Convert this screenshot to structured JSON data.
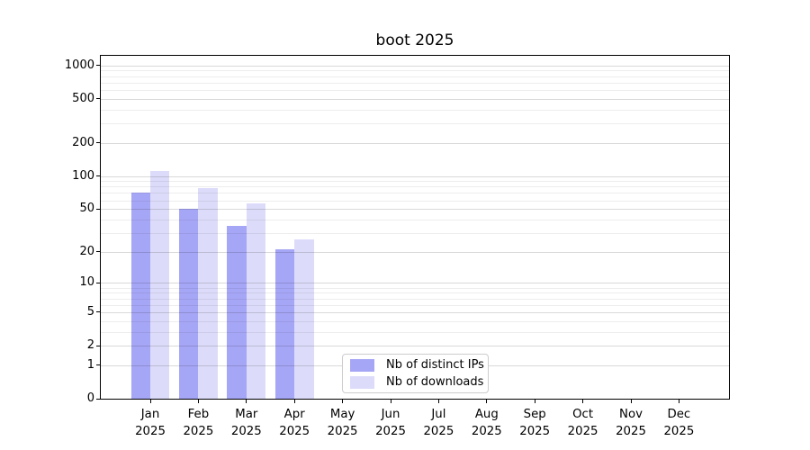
{
  "chart_data": {
    "type": "bar",
    "title": "boot 2025",
    "categories": [
      "Jan",
      "Feb",
      "Mar",
      "Apr",
      "May",
      "Jun",
      "Jul",
      "Aug",
      "Sep",
      "Oct",
      "Nov",
      "Dec"
    ],
    "category_year": "2025",
    "series": [
      {
        "name": "Nb of distinct IPs",
        "color": "#a6a6f6",
        "values": [
          70,
          50,
          35,
          21,
          null,
          null,
          null,
          null,
          null,
          null,
          null,
          null
        ]
      },
      {
        "name": "Nb of downloads",
        "color": "#dcdcfa",
        "values": [
          111,
          78,
          56,
          26,
          null,
          null,
          null,
          null,
          null,
          null,
          null,
          null
        ]
      }
    ],
    "y_scale": "log1p",
    "ylim": [
      0,
      1220
    ],
    "y_ticks": [
      0,
      1,
      2,
      5,
      10,
      20,
      50,
      100,
      200,
      500,
      1000
    ],
    "y_minor_ticks": [
      3,
      4,
      6,
      7,
      8,
      9,
      30,
      40,
      60,
      70,
      80,
      90,
      300,
      400,
      600,
      700,
      800,
      900
    ],
    "grid": "horizontal major and minor, drawn over bars",
    "legend_position": "inside axes, lower center-left",
    "colors": {
      "major_grid": "rgba(0,0,0,0.15)",
      "minor_grid": "rgba(0,0,0,0.07)",
      "spine": "#000000",
      "text": "#000000",
      "background": "#ffffff"
    }
  }
}
